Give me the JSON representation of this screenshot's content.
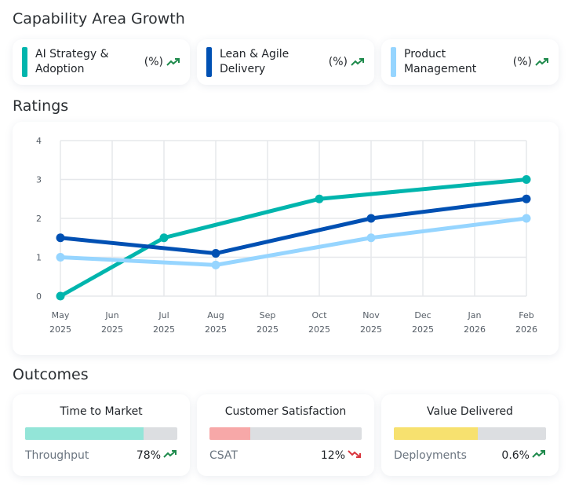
{
  "header": {
    "title": "Capability Area Growth"
  },
  "legend": [
    {
      "label": "AI Strategy & Adoption",
      "value": "(%)",
      "trend": "up",
      "color": "#00b5ad"
    },
    {
      "label": "Lean & Agile Delivery",
      "value": "(%)",
      "trend": "up",
      "color": "#0050b3"
    },
    {
      "label": "Product Management",
      "value": "(%)",
      "trend": "up",
      "color": "#96d5ff"
    }
  ],
  "ratings": {
    "title": "Ratings"
  },
  "chart_data": {
    "type": "line",
    "x": [
      "May 2025",
      "Jun 2025",
      "Jul 2025",
      "Aug 2025",
      "Sep 2025",
      "Oct 2025",
      "Nov 2025",
      "Dec 2025",
      "Jan 2026",
      "Feb 2026"
    ],
    "x_ticks": [
      [
        "May",
        "2025"
      ],
      [
        "Jun",
        "2025"
      ],
      [
        "Jul",
        "2025"
      ],
      [
        "Aug",
        "2025"
      ],
      [
        "Sep",
        "2025"
      ],
      [
        "Oct",
        "2025"
      ],
      [
        "Nov",
        "2025"
      ],
      [
        "Dec",
        "2025"
      ],
      [
        "Jan",
        "2026"
      ],
      [
        "Feb",
        "2026"
      ]
    ],
    "ylim": [
      0,
      4
    ],
    "y_ticks": [
      "0",
      "1",
      "2",
      "3",
      "4"
    ],
    "grid": true,
    "series": [
      {
        "name": "AI Strategy & Adoption",
        "color": "#00b5ad",
        "points": [
          [
            "May 2025",
            0
          ],
          [
            "Jul 2025",
            1.5
          ],
          [
            "Oct 2025",
            2.5
          ],
          [
            "Feb 2026",
            3
          ]
        ]
      },
      {
        "name": "Lean & Agile Delivery",
        "color": "#0050b3",
        "points": [
          [
            "May 2025",
            1.5
          ],
          [
            "Aug 2025",
            1.1
          ],
          [
            "Nov 2025",
            2
          ],
          [
            "Feb 2026",
            2.5
          ]
        ]
      },
      {
        "name": "Product Management",
        "color": "#96d5ff",
        "points": [
          [
            "May 2025",
            1
          ],
          [
            "Aug 2025",
            0.8
          ],
          [
            "Nov 2025",
            1.5
          ],
          [
            "Feb 2026",
            2
          ]
        ]
      }
    ]
  },
  "outcomes": {
    "title": "Outcomes",
    "cards": [
      {
        "title": "Time to Market",
        "metric": "Throughput",
        "value": "78%",
        "trend": "up",
        "fill": 0.78,
        "color": "#93e5d8"
      },
      {
        "title": "Customer Satisfaction",
        "metric": "CSAT",
        "value": "12%",
        "trend": "down",
        "fill": 0.27,
        "color": "#f7a8a8"
      },
      {
        "title": "Value Delivered",
        "metric": "Deployments",
        "value": "0.6%",
        "trend": "up",
        "fill": 0.55,
        "color": "#f7e16f"
      }
    ]
  }
}
